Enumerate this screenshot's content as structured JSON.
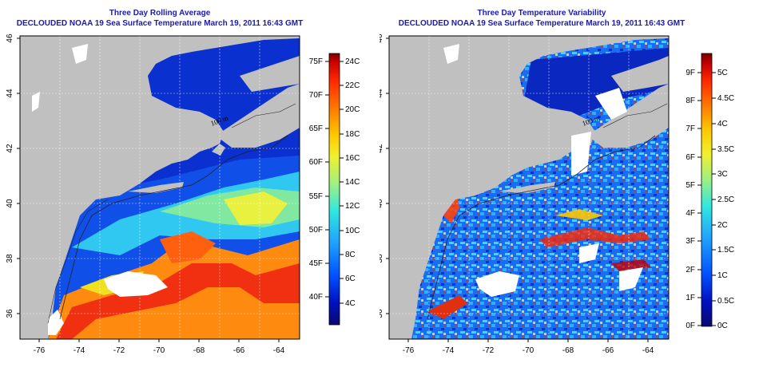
{
  "panels": [
    {
      "title": "Three Day Rolling Average",
      "subtitle": "DECLOUDED NOAA 19 Sea Surface Temperature March 19, 2011 16:43 GMT",
      "isobath_label": "100 m",
      "colorbar": {
        "celsius_labels": [
          "24C",
          "22C",
          "20C",
          "18C",
          "16C",
          "14C",
          "12C",
          "10C",
          "8C",
          "6C",
          "4C"
        ],
        "fahrenheit_labels": [
          "75F",
          "70F",
          "65F",
          "60F",
          "55F",
          "50F",
          "45F",
          "40F"
        ],
        "palette": [
          "#ffffff",
          "#7a0000",
          "#c80000",
          "#ff2800",
          "#ff7800",
          "#ffc800",
          "#f0f030",
          "#a0f080",
          "#30e8e0",
          "#20a0ff",
          "#0050ff",
          "#0010c0",
          "#0a0a70"
        ]
      }
    },
    {
      "title": "Three Day Temperature Variability",
      "subtitle": "DECLOUDED NOAA 19 Sea Surface Temperature March 19, 2011 16:43 GMT",
      "isobath_label": "100 m",
      "colorbar": {
        "celsius_labels": [
          "5C",
          "4.5C",
          "4C",
          "3.5C",
          "3C",
          "2.5C",
          "2C",
          "1.5C",
          "1C",
          "0.5C",
          "0C"
        ],
        "fahrenheit_labels": [
          "9F",
          "8F",
          "7F",
          "6F",
          "5F",
          "4F",
          "3F",
          "2F",
          "1F",
          "0F"
        ],
        "palette": [
          "#7a0000",
          "#c80000",
          "#ff2800",
          "#ff7800",
          "#ffc800",
          "#f0f030",
          "#a0f080",
          "#30e8e0",
          "#20a0ff",
          "#0050ff",
          "#0010c0",
          "#0a0a70"
        ]
      }
    }
  ],
  "axes": {
    "lat_ticks": [
      "46",
      "44",
      "42",
      "40",
      "38",
      "36"
    ],
    "lon_ticks": [
      "-76",
      "-74",
      "-72",
      "-70",
      "-68",
      "-66",
      "-64"
    ]
  },
  "colors": {
    "land": "#c0c0c0",
    "title_text": "#1a1ab0",
    "deep_cold": "#0a28c8",
    "cold": "#1060f0",
    "warm": "#ff8010",
    "hot": "#e82000"
  }
}
